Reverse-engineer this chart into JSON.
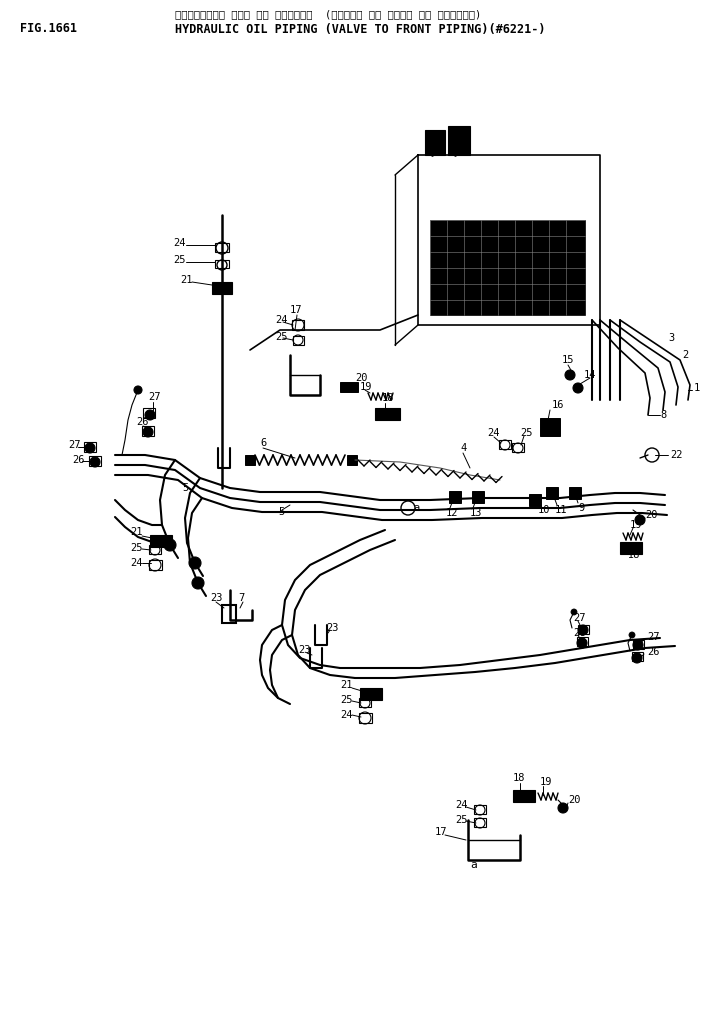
{
  "title_jp": "ハイト゛ロリック オイル ハ゛ イヒ゛ンク゛  (ハ゛ルフ゛ カラ フロント ハ゛ イヒ゛ンク゛)",
  "title_en": "HYDRAULIC OIL PIPING (VALVE TO FRONT PIPING)(#6221-)",
  "fig_label": "FIG.1661",
  "bg_color": "#ffffff",
  "line_color": "#000000",
  "text_color": "#000000"
}
